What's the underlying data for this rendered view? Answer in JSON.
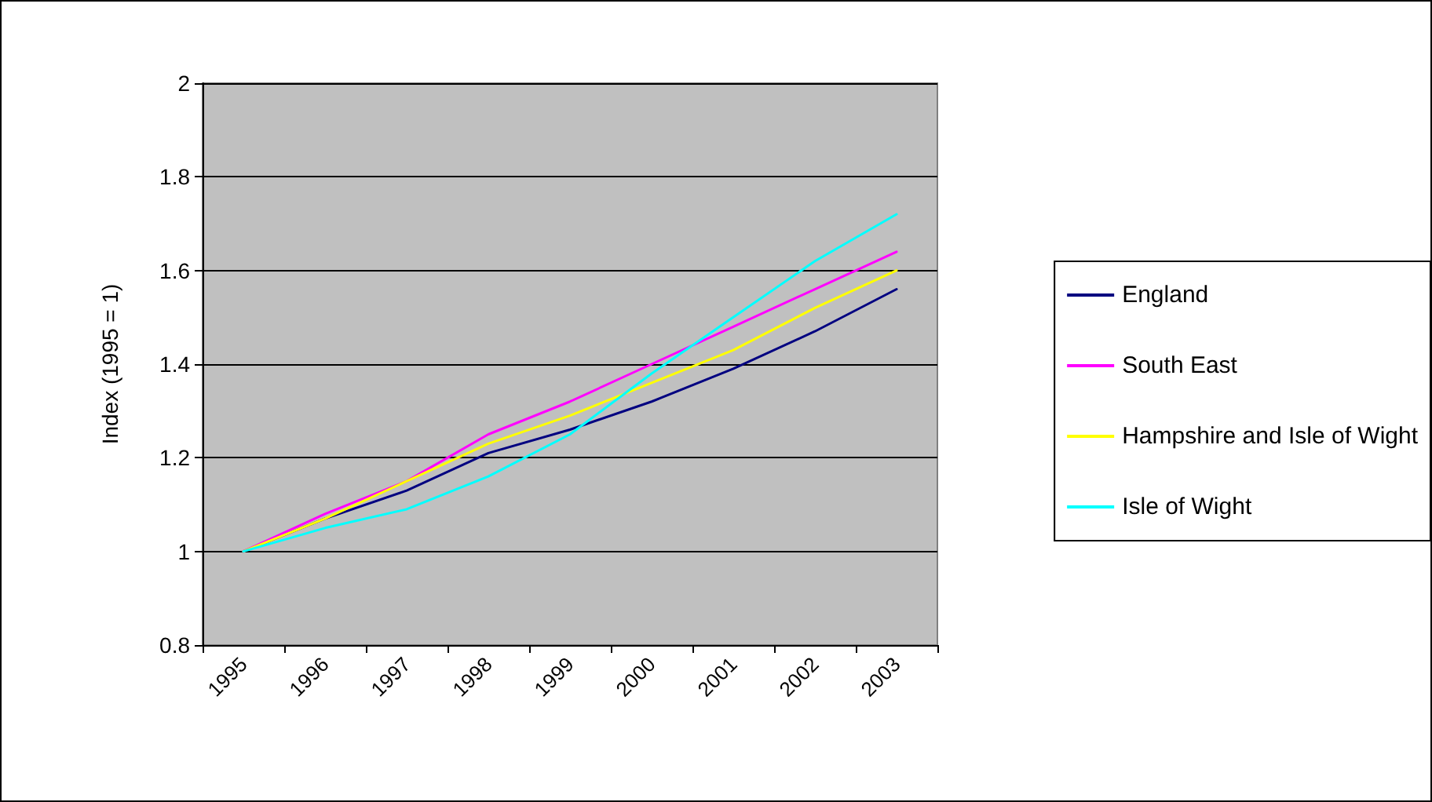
{
  "chart_data": {
    "type": "line",
    "ylabel": "Index (1995 = 1)",
    "categories": [
      "1995",
      "1996",
      "1997",
      "1998",
      "1999",
      "2000",
      "2001",
      "2002",
      "2003"
    ],
    "series": [
      {
        "name": "England",
        "color": "#000080",
        "values": [
          1,
          1.07,
          1.13,
          1.21,
          1.26,
          1.32,
          1.39,
          1.47,
          1.56
        ]
      },
      {
        "name": "South East",
        "color": "#ff00ff",
        "values": [
          1,
          1.08,
          1.15,
          1.25,
          1.32,
          1.4,
          1.48,
          1.56,
          1.64
        ]
      },
      {
        "name": "Hampshire and Isle of Wight",
        "color": "#ffff00",
        "values": [
          1,
          1.07,
          1.15,
          1.23,
          1.29,
          1.36,
          1.43,
          1.52,
          1.6
        ]
      },
      {
        "name": "Isle of Wight",
        "color": "#00ffff",
        "values": [
          1,
          1.05,
          1.09,
          1.16,
          1.25,
          1.38,
          1.5,
          1.62,
          1.72
        ]
      }
    ],
    "ylim": [
      0.8,
      2
    ],
    "yticks": [
      0.8,
      1,
      1.2,
      1.4,
      1.6,
      1.8,
      2
    ],
    "grid": "y",
    "legend": "right",
    "marker": "none",
    "line_style": "solid"
  }
}
